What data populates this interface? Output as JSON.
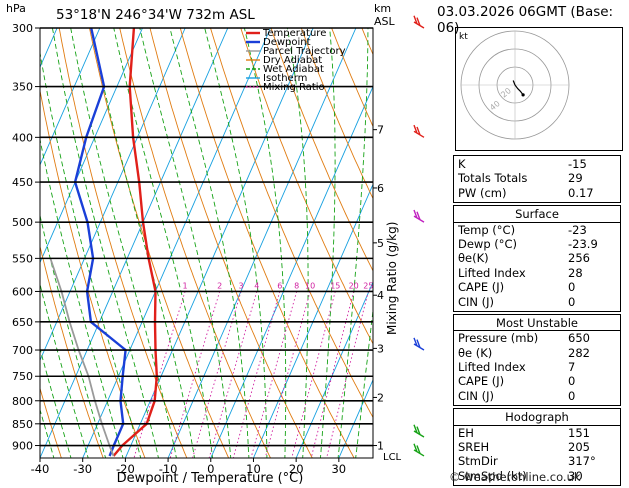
{
  "header": {
    "location": "53°18'N 246°34'W 732m ASL",
    "datetime": "03.03.2026 06GMT (Base: 06)",
    "pressure_unit": "hPa",
    "height_unit_km": "km",
    "height_unit_asl": "ASL"
  },
  "chart_data": {
    "type": "skew-t log-p",
    "xlabel": "Dewpoint / Temperature (°C)",
    "ylabel_right": "Mixing Ratio (g/kg)",
    "x_ticks": [
      -40,
      -30,
      -20,
      -10,
      0,
      10,
      20,
      30
    ],
    "xlim": [
      -40,
      38
    ],
    "pressure_levels": [
      300,
      350,
      400,
      450,
      500,
      550,
      600,
      650,
      700,
      750,
      800,
      850,
      900
    ],
    "ylim": [
      300,
      930
    ],
    "km_ticks": [
      {
        "km": "1",
        "p": 900
      },
      {
        "km": "2",
        "p": 793
      },
      {
        "km": "3",
        "p": 697
      },
      {
        "km": "4",
        "p": 606
      },
      {
        "km": "5",
        "p": 528
      },
      {
        "km": "6",
        "p": 457
      },
      {
        "km": "7",
        "p": 392
      }
    ],
    "lcl": {
      "label": "LCL",
      "p": 925
    },
    "mixing_ratio_labels": [
      "1",
      "2",
      "3",
      "4",
      "6",
      "8",
      "10",
      "15",
      "20",
      "25"
    ],
    "mixing_ratio_values": [
      1,
      2,
      3,
      4,
      6,
      8,
      10,
      15,
      20,
      25
    ],
    "legend": [
      {
        "name": "Temperature",
        "color": "#e0201a"
      },
      {
        "name": "Dewpoint",
        "color": "#1a3fd8"
      },
      {
        "name": "Parcel Trajectory",
        "color": "#9a9a9a"
      },
      {
        "name": "Dry Adiabat",
        "color": "#e07c12"
      },
      {
        "name": "Wet Adiabat",
        "color": "#16a216"
      },
      {
        "name": "Isotherm",
        "color": "#16a0e0"
      },
      {
        "name": "Mixing Ratio",
        "color": "#d020a0"
      }
    ],
    "series": [
      {
        "name": "Temperature",
        "points": [
          [
            925,
            -23
          ],
          [
            900,
            -22
          ],
          [
            850,
            -18.5
          ],
          [
            800,
            -19
          ],
          [
            750,
            -21
          ],
          [
            700,
            -24
          ],
          [
            650,
            -27
          ],
          [
            600,
            -30
          ],
          [
            550,
            -35
          ],
          [
            500,
            -40
          ],
          [
            450,
            -45
          ],
          [
            400,
            -51
          ],
          [
            350,
            -57
          ],
          [
            300,
            -62
          ]
        ]
      },
      {
        "name": "Dewpoint",
        "points": [
          [
            925,
            -23.9
          ],
          [
            900,
            -24
          ],
          [
            850,
            -24
          ],
          [
            800,
            -27
          ],
          [
            750,
            -29
          ],
          [
            700,
            -31
          ],
          [
            650,
            -42
          ],
          [
            600,
            -46
          ],
          [
            550,
            -48
          ],
          [
            500,
            -53
          ],
          [
            450,
            -60
          ],
          [
            400,
            -62
          ],
          [
            350,
            -63
          ],
          [
            300,
            -72
          ]
        ]
      },
      {
        "name": "Parcel Trajectory",
        "points": [
          [
            925,
            -23
          ],
          [
            900,
            -25
          ],
          [
            850,
            -29
          ],
          [
            800,
            -33
          ],
          [
            750,
            -37
          ],
          [
            700,
            -42
          ],
          [
            650,
            -47
          ],
          [
            600,
            -52
          ],
          [
            550,
            -58
          ]
        ]
      }
    ]
  },
  "hodograph": {
    "unit_label": "kt",
    "ring_labels": [
      "20",
      "40"
    ],
    "points_kt": [
      [
        0,
        0
      ],
      [
        -2,
        5
      ],
      [
        0,
        0
      ],
      [
        3,
        -4
      ],
      [
        6,
        -7
      ],
      [
        9,
        -11
      ]
    ]
  },
  "indices": {
    "main": [
      {
        "key": "K",
        "value": "-15"
      },
      {
        "key": "Totals Totals",
        "value": "29"
      },
      {
        "key": "PW (cm)",
        "value": "0.17"
      }
    ],
    "surface_title": "Surface",
    "surface": [
      {
        "key": "Temp (°C)",
        "value": "-23"
      },
      {
        "key": "Dewp (°C)",
        "value": "-23.9"
      },
      {
        "key": "θe(K)",
        "value": "256"
      },
      {
        "key": "Lifted Index",
        "value": "28"
      },
      {
        "key": "CAPE (J)",
        "value": "0"
      },
      {
        "key": "CIN (J)",
        "value": "0"
      }
    ],
    "unstable_title": "Most Unstable",
    "unstable": [
      {
        "key": "Pressure (mb)",
        "value": "650"
      },
      {
        "key": "θe (K)",
        "value": "282"
      },
      {
        "key": "Lifted Index",
        "value": "7"
      },
      {
        "key": "CAPE (J)",
        "value": "0"
      },
      {
        "key": "CIN (J)",
        "value": "0"
      }
    ],
    "hodograph_title": "Hodograph",
    "hodograph": [
      {
        "key": "EH",
        "value": "151"
      },
      {
        "key": "SREH",
        "value": "205"
      },
      {
        "key": "StmDir",
        "value": "317°"
      },
      {
        "key": "StmSpd (kt)",
        "value": "30"
      }
    ]
  },
  "footer": {
    "copyright": "© weatheronline.co.uk"
  }
}
